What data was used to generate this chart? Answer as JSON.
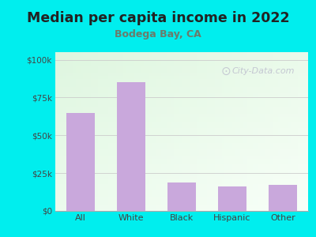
{
  "title": "Median per capita income in 2022",
  "subtitle": "Bodega Bay, CA",
  "categories": [
    "All",
    "White",
    "Black",
    "Hispanic",
    "Other"
  ],
  "values": [
    65000,
    85000,
    19000,
    16000,
    17000
  ],
  "bar_color": "#C9A8DC",
  "title_color": "#222222",
  "subtitle_color": "#6B7B6B",
  "outer_bg": "#00EEEE",
  "yticks": [
    0,
    25000,
    50000,
    75000,
    100000
  ],
  "ytick_labels": [
    "$0",
    "$25k",
    "$50k",
    "$75k",
    "$100k"
  ],
  "ylim": [
    0,
    105000
  ],
  "watermark": "City-Data.com",
  "watermark_color": "#bbbbcc"
}
